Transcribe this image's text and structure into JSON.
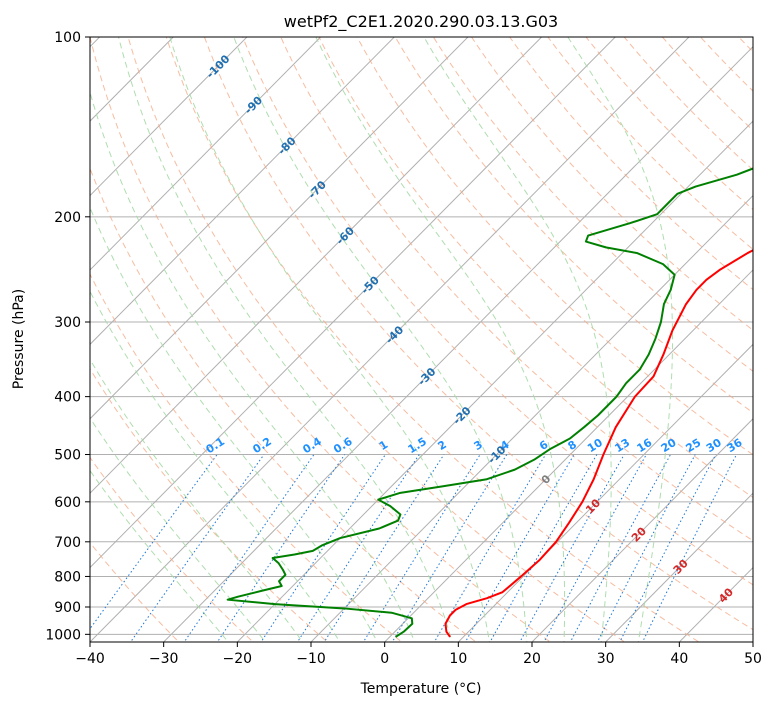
{
  "chart_data": {
    "type": "line",
    "title": "wetPf2_C2E1.2020.290.03.13.G03",
    "xlabel": "Temperature (°C)",
    "ylabel": "Pressure (hPa)",
    "xlim": [
      -40,
      50
    ],
    "ylim": [
      1030,
      100
    ],
    "y_scale": "log",
    "grid": true,
    "x_ticks": [
      -40,
      -30,
      -20,
      -10,
      0,
      10,
      20,
      30,
      40,
      50
    ],
    "x_tick_labels": [
      "−40",
      "−30",
      "−20",
      "−10",
      "0",
      "10",
      "20",
      "30",
      "40",
      "50"
    ],
    "y_ticks": [
      1000,
      900,
      800,
      700,
      600,
      500,
      400,
      300,
      200,
      100
    ],
    "y_tick_labels": [
      "1000",
      "900",
      "800",
      "700",
      "600",
      "500",
      "400",
      "300",
      "200",
      "100"
    ],
    "series": [
      {
        "name": "",
        "color": "#ff0000",
        "points": [
          {
            "p": 1010,
            "t": 8.2
          },
          {
            "p": 990,
            "t": 7.0
          },
          {
            "p": 960,
            "t": 5.8
          },
          {
            "p": 930,
            "t": 5.3
          },
          {
            "p": 910,
            "t": 5.3
          },
          {
            "p": 890,
            "t": 6.0
          },
          {
            "p": 870,
            "t": 8.0
          },
          {
            "p": 850,
            "t": 9.3
          },
          {
            "p": 800,
            "t": 9.7
          },
          {
            "p": 750,
            "t": 10.0
          },
          {
            "p": 700,
            "t": 9.8
          },
          {
            "p": 650,
            "t": 9.0
          },
          {
            "p": 600,
            "t": 8.0
          },
          {
            "p": 550,
            "t": 6.5
          },
          {
            "p": 500,
            "t": 4.5
          },
          {
            "p": 450,
            "t": 2.5
          },
          {
            "p": 400,
            "t": 1.0
          },
          {
            "p": 370,
            "t": 0.8
          },
          {
            "p": 340,
            "t": -0.8
          },
          {
            "p": 310,
            "t": -2.8
          },
          {
            "p": 280,
            "t": -4.5
          },
          {
            "p": 265,
            "t": -5.0
          },
          {
            "p": 255,
            "t": -5.0
          },
          {
            "p": 245,
            "t": -4.5
          },
          {
            "p": 230,
            "t": -3.0
          },
          {
            "p": 220,
            "t": -1.5
          },
          {
            "p": 210,
            "t": 0.0
          },
          {
            "p": 200,
            "t": 1.0
          },
          {
            "p": 185,
            "t": 2.5
          },
          {
            "p": 170,
            "t": 4.5
          },
          {
            "p": 155,
            "t": 6.5
          },
          {
            "p": 145,
            "t": 8.0
          },
          {
            "p": 135,
            "t": 9.0
          },
          {
            "p": 125,
            "t": 9.8
          },
          {
            "p": 120,
            "t": 10.3
          },
          {
            "p": 110,
            "t": 12.5
          },
          {
            "p": 100,
            "t": 15.2
          }
        ]
      },
      {
        "name": "",
        "color": "#008000",
        "points": [
          {
            "p": 1010,
            "t": 0.8
          },
          {
            "p": 990,
            "t": 1.2
          },
          {
            "p": 960,
            "t": 1.3
          },
          {
            "p": 940,
            "t": 0.5
          },
          {
            "p": 920,
            "t": -3.0
          },
          {
            "p": 905,
            "t": -10.0
          },
          {
            "p": 890,
            "t": -20.0
          },
          {
            "p": 875,
            "t": -27.0
          },
          {
            "p": 865,
            "t": -26.0
          },
          {
            "p": 845,
            "t": -23.5
          },
          {
            "p": 830,
            "t": -21.5
          },
          {
            "p": 815,
            "t": -22.5
          },
          {
            "p": 795,
            "t": -22.5
          },
          {
            "p": 780,
            "t": -23.5
          },
          {
            "p": 760,
            "t": -25.0
          },
          {
            "p": 745,
            "t": -26.5
          },
          {
            "p": 735,
            "t": -24.0
          },
          {
            "p": 725,
            "t": -22.0
          },
          {
            "p": 710,
            "t": -21.5
          },
          {
            "p": 690,
            "t": -20.0
          },
          {
            "p": 665,
            "t": -16.0
          },
          {
            "p": 645,
            "t": -14.5
          },
          {
            "p": 630,
            "t": -15.0
          },
          {
            "p": 610,
            "t": -17.5
          },
          {
            "p": 595,
            "t": -20.0
          },
          {
            "p": 580,
            "t": -18.0
          },
          {
            "p": 565,
            "t": -13.0
          },
          {
            "p": 550,
            "t": -8.0
          },
          {
            "p": 530,
            "t": -5.5
          },
          {
            "p": 510,
            "t": -4.2
          },
          {
            "p": 490,
            "t": -3.5
          },
          {
            "p": 470,
            "t": -2.2
          },
          {
            "p": 450,
            "t": -1.8
          },
          {
            "p": 430,
            "t": -1.5
          },
          {
            "p": 400,
            "t": -1.5
          },
          {
            "p": 380,
            "t": -2.0
          },
          {
            "p": 360,
            "t": -2.0
          },
          {
            "p": 340,
            "t": -2.8
          },
          {
            "p": 320,
            "t": -4.0
          },
          {
            "p": 300,
            "t": -5.5
          },
          {
            "p": 280,
            "t": -7.5
          },
          {
            "p": 265,
            "t": -8.5
          },
          {
            "p": 250,
            "t": -10.0
          },
          {
            "p": 240,
            "t": -13.0
          },
          {
            "p": 230,
            "t": -18.0
          },
          {
            "p": 225,
            "t": -23.0
          },
          {
            "p": 220,
            "t": -26.5
          },
          {
            "p": 215,
            "t": -27.0
          },
          {
            "p": 205,
            "t": -23.0
          },
          {
            "p": 198,
            "t": -20.5
          },
          {
            "p": 190,
            "t": -20.5
          },
          {
            "p": 183,
            "t": -20.5
          },
          {
            "p": 178,
            "t": -19.0
          },
          {
            "p": 170,
            "t": -15.0
          },
          {
            "p": 160,
            "t": -11.5
          },
          {
            "p": 150,
            "t": -10.5
          },
          {
            "p": 145,
            "t": -10.0
          },
          {
            "p": 140,
            "t": -9.0
          },
          {
            "p": 130,
            "t": -7.0
          },
          {
            "p": 120,
            "t": -5.0
          },
          {
            "p": 110,
            "t": -2.5
          },
          {
            "p": 100,
            "t": 0.0
          }
        ]
      }
    ],
    "dry_adiabat_labels": [
      "-100",
      "-90",
      "-80",
      "-70",
      "-60",
      "-50",
      "-40",
      "-30",
      "-20",
      "-10",
      "0",
      "10",
      "20",
      "30",
      "40"
    ],
    "mixing_ratio_labels": [
      "0.1",
      "0.2",
      "0.4",
      "0.6",
      "1",
      "1.5",
      "2",
      "3",
      "4",
      "6",
      "8",
      "10",
      "13",
      "16",
      "20",
      "25",
      "30",
      "36"
    ],
    "colors": {
      "isotherm": "#b0b0b0",
      "isobar": "#b0b0b0",
      "dry_adiabat": "#f4a582",
      "moist_adiabat": "#a6d9a6",
      "mixing_ratio": "#1f77d4",
      "dry_label_cold": "#1f6fb0",
      "dry_label_warm": "#d62728",
      "dry_label_zero": "#7f7f7f",
      "mixing_label": "#1e90ff"
    }
  }
}
